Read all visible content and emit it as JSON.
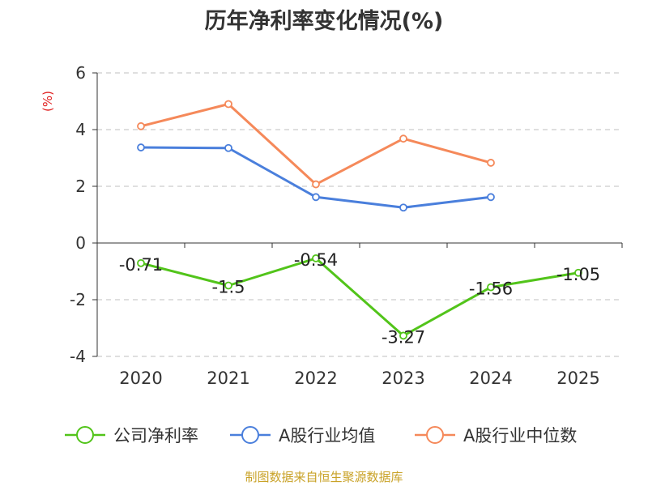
{
  "chart_data": {
    "type": "line",
    "title": "历年净利率变化情况(%)",
    "ylabel": "(%)",
    "categories": [
      "2020",
      "2021",
      "2022",
      "2023",
      "2024",
      "2025"
    ],
    "ylim": [
      -4,
      6
    ],
    "yticks": [
      "6",
      "4",
      "2",
      "0",
      "-2",
      "-4"
    ],
    "grid": true,
    "legend_position": "bottom",
    "series": [
      {
        "name": "公司净利率",
        "color": "#52c41a",
        "values": [
          -0.71,
          -1.5,
          -0.54,
          -3.27,
          -1.56,
          -1.05
        ],
        "labels": [
          "-0.71",
          "-1.5",
          "-0.54",
          "-3.27",
          "-1.56",
          "-1.05"
        ]
      },
      {
        "name": "A股行业均值",
        "color": "#4a7fdc",
        "values": [
          3.37,
          3.35,
          1.62,
          1.25,
          1.62,
          null
        ]
      },
      {
        "name": "A股行业中位数",
        "color": "#f5895a",
        "values": [
          4.12,
          4.9,
          2.07,
          3.68,
          2.83,
          null
        ]
      }
    ]
  },
  "footer": {
    "source": "制图数据来自恒生聚源数据库"
  },
  "colors": {
    "ylabel": "#e02020",
    "grid": "#cccccc",
    "axis": "#333333",
    "source": "#c9a227"
  }
}
